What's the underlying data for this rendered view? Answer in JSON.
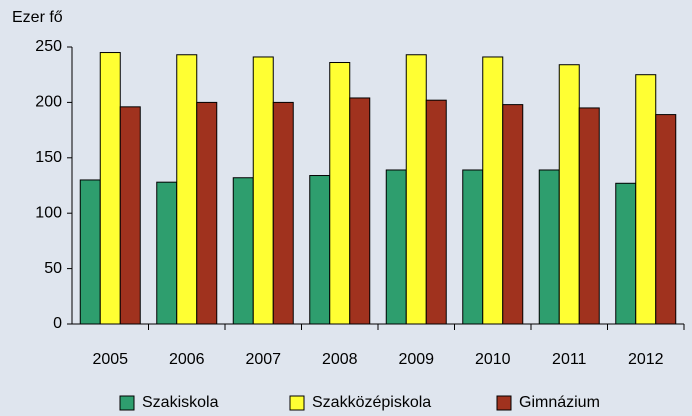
{
  "chart_data": {
    "type": "bar",
    "ylabel": "Ezer fő",
    "categories": [
      "2005",
      "2006",
      "2007",
      "2008",
      "2009",
      "2010",
      "2011",
      "2012"
    ],
    "series": [
      {
        "name": "Szakiskola",
        "color": "#2e9e6e",
        "values": [
          130,
          128,
          132,
          134,
          139,
          139,
          139,
          127
        ]
      },
      {
        "name": "Szakközépiskola",
        "color": "#ffff33",
        "values": [
          245,
          243,
          241,
          236,
          243,
          241,
          234,
          225
        ]
      },
      {
        "name": "Gimnázium",
        "color": "#a0321e",
        "values": [
          196,
          200,
          200,
          204,
          202,
          198,
          195,
          189
        ]
      }
    ],
    "ylim": [
      0,
      250
    ],
    "yticks": [
      0,
      50,
      100,
      150,
      200,
      250
    ],
    "grid": false,
    "legend": "bottom"
  }
}
